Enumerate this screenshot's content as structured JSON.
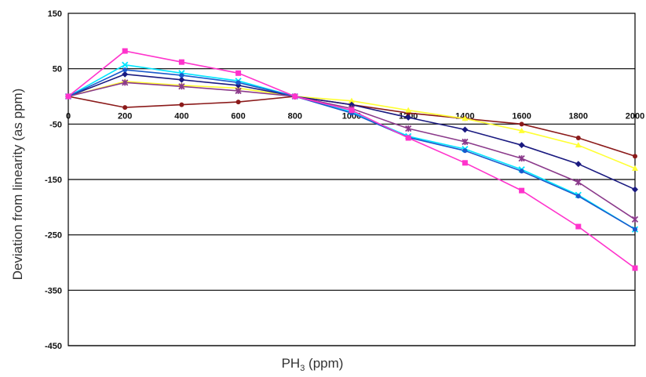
{
  "chart_data": {
    "type": "line",
    "xlabel_main": "PH",
    "xlabel_sub": "3",
    "xlabel_unit": " (ppm)",
    "ylabel": "Deviation from linearity  (as ppm)",
    "x": [
      0,
      200,
      400,
      600,
      800,
      1000,
      1200,
      1400,
      1600,
      1800,
      2000
    ],
    "x_ticks": [
      "0",
      "200",
      "400",
      "600",
      "800",
      "1000",
      "1200",
      "1400",
      "1600",
      "1800",
      "2000"
    ],
    "y_ticks": [
      "150",
      "50",
      "-50",
      "-150",
      "-250",
      "-350",
      "-450"
    ],
    "y_tick_values": [
      150,
      50,
      -50,
      -150,
      -250,
      -350,
      -450
    ],
    "xlim": [
      0,
      2000
    ],
    "ylim": [
      -450,
      150
    ],
    "grid": "horizontal",
    "legend": "none",
    "series": [
      {
        "color": "#8B1A1A",
        "marker": "circle",
        "values": [
          0,
          -20,
          -15,
          -10,
          0,
          -15,
          -30,
          -40,
          -50,
          -75,
          -108
        ]
      },
      {
        "color": "#FFFF33",
        "marker": "triangle",
        "values": [
          0,
          27,
          20,
          15,
          0,
          -8,
          -25,
          -40,
          -62,
          -88,
          -130
        ]
      },
      {
        "color": "#1A1A80",
        "marker": "diamond",
        "values": [
          0,
          40,
          30,
          20,
          0,
          -15,
          -38,
          -60,
          -88,
          -122,
          -168
        ]
      },
      {
        "color": "#8B3A8B",
        "marker": "star",
        "values": [
          0,
          25,
          18,
          10,
          0,
          -22,
          -58,
          -82,
          -112,
          -155,
          -222
        ]
      },
      {
        "color": "#00E5FF",
        "marker": "x",
        "values": [
          0,
          57,
          42,
          28,
          0,
          -28,
          -72,
          -95,
          -132,
          -178,
          -240
        ]
      },
      {
        "color": "#1A5ACC",
        "marker": "circle",
        "values": [
          0,
          48,
          38,
          25,
          0,
          -30,
          -74,
          -98,
          -135,
          -180,
          -240
        ]
      },
      {
        "color": "#FF33CC",
        "marker": "square",
        "values": [
          0,
          82,
          62,
          42,
          0,
          -25,
          -75,
          -120,
          -170,
          -235,
          -310
        ]
      }
    ]
  }
}
